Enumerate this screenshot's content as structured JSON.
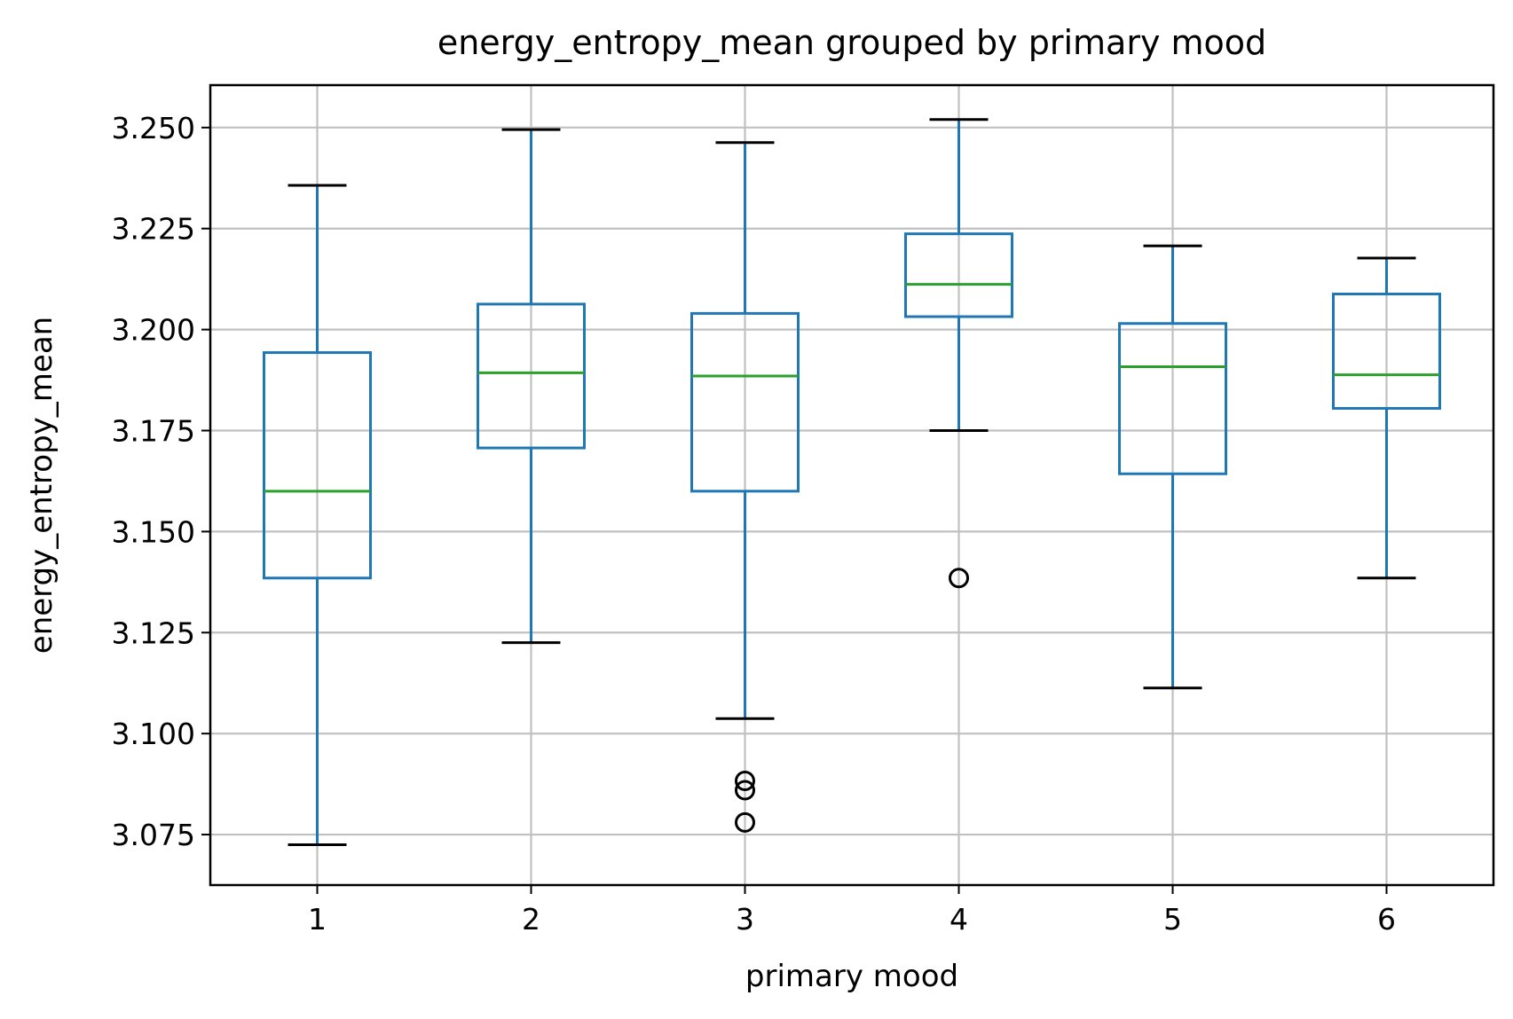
{
  "chart_data": {
    "type": "box",
    "title": "energy_entropy_mean grouped by primary mood",
    "xlabel": "primary mood",
    "ylabel": "energy_entropy_mean",
    "categories": [
      "1",
      "2",
      "3",
      "4",
      "5",
      "6"
    ],
    "yticks": [
      "3.075",
      "3.100",
      "3.125",
      "3.150",
      "3.175",
      "3.200",
      "3.225",
      "3.250"
    ],
    "ylim": [
      3.0625,
      3.2605
    ],
    "grid": true,
    "colors": {
      "box": "#1f77b4",
      "median": "#2ca02c",
      "whisker_cap": "#000000",
      "grid": "#c0c0c0"
    },
    "boxes": [
      {
        "category": "1",
        "whisker_low": 3.0725,
        "q1": 3.1385,
        "median": 3.16,
        "q3": 3.1943,
        "whisker_high": 3.2357,
        "outliers": []
      },
      {
        "category": "2",
        "whisker_low": 3.1225,
        "q1": 3.1707,
        "median": 3.1893,
        "q3": 3.2063,
        "whisker_high": 3.2495,
        "outliers": []
      },
      {
        "category": "3",
        "whisker_low": 3.1037,
        "q1": 3.16,
        "median": 3.1885,
        "q3": 3.204,
        "whisker_high": 3.2463,
        "outliers": [
          3.0883,
          3.086,
          3.078
        ]
      },
      {
        "category": "4",
        "whisker_low": 3.175,
        "q1": 3.2032,
        "median": 3.2112,
        "q3": 3.2237,
        "whisker_high": 3.252,
        "outliers": [
          3.1385
        ]
      },
      {
        "category": "5",
        "whisker_low": 3.1113,
        "q1": 3.1643,
        "median": 3.1908,
        "q3": 3.2015,
        "whisker_high": 3.2207,
        "outliers": []
      },
      {
        "category": "6",
        "whisker_low": 3.1385,
        "q1": 3.1805,
        "median": 3.1888,
        "q3": 3.2088,
        "whisker_high": 3.2177,
        "outliers": []
      }
    ]
  }
}
